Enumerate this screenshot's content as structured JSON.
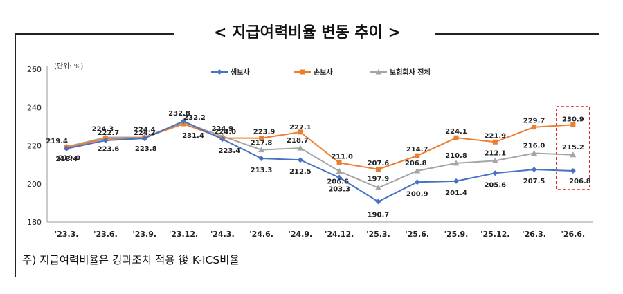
{
  "title": "< 지급여력비율 변동 추이 >",
  "footnote": "주) 지급여력비율은 경과조치 적용 後 K-ICS비율",
  "chart_data": {
    "type": "line",
    "unit_label": "(단위: %)",
    "categories": [
      "'23.3.",
      "'23.6.",
      "'23.9.",
      "'23.12.",
      "'24.3.",
      "'24.6.",
      "'24.9.",
      "'24.12.",
      "'25.3.",
      "'25.6.",
      "'25.9.",
      "'25.12.",
      "'26.3.",
      "'26.6."
    ],
    "ylim": [
      180,
      260
    ],
    "yticks": [
      180,
      200,
      220,
      240,
      260
    ],
    "legend_position": "top",
    "grid": false,
    "series": [
      {
        "name": "생보사",
        "color": "#4472C4",
        "marker": "diamond",
        "values": [
          218.4,
          222.7,
          223.8,
          232.8,
          223.4,
          213.3,
          212.5,
          203.3,
          190.7,
          200.9,
          201.4,
          205.6,
          207.5,
          206.8
        ]
      },
      {
        "name": "손보사",
        "color": "#ED7D31",
        "marker": "square",
        "values": [
          219.0,
          223.6,
          224.2,
          231.4,
          224.0,
          223.9,
          227.1,
          211.0,
          207.6,
          214.7,
          224.1,
          221.9,
          229.7,
          230.9
        ]
      },
      {
        "name": "보험회사 전체",
        "color": "#A5A5A5",
        "marker": "triangle",
        "values": [
          219.4,
          224.3,
          224.4,
          232.2,
          224.9,
          217.8,
          218.7,
          206.6,
          197.9,
          206.8,
          210.8,
          212.1,
          216.0,
          215.2
        ]
      }
    ],
    "highlight": {
      "category_index": 13,
      "color": "#E02020",
      "style": "dashed"
    }
  }
}
